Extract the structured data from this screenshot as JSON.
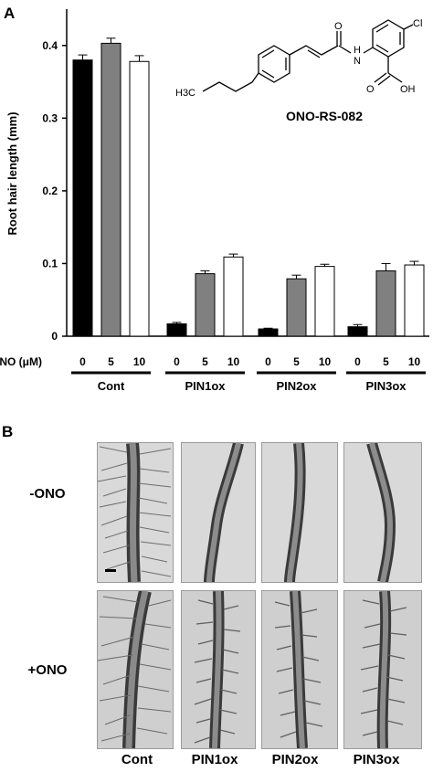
{
  "panel_a_label": "A",
  "panel_b_label": "B",
  "compound_name": "ONO-RS-082",
  "structure_labels": {
    "cl": "Cl",
    "nh": "H",
    "n": "N",
    "o": "O",
    "acid": "OH",
    "methyl": "H3C"
  },
  "chart_data": {
    "type": "bar",
    "title": "",
    "ylabel": "Root hair length (mm)",
    "xlabel": "ONO (μM)",
    "ylim": [
      0,
      0.45
    ],
    "yticks": [
      0,
      0.1,
      0.2,
      0.3,
      0.4
    ],
    "ytick_labels": [
      "0",
      "0.1",
      "0.2",
      "0.3",
      "0.4"
    ],
    "grid": false,
    "groups": [
      {
        "name": "Cont",
        "concentrations": [
          "0",
          "5",
          "10"
        ],
        "values": [
          0.38,
          0.403,
          0.378
        ],
        "errors": [
          0.007,
          0.007,
          0.008
        ]
      },
      {
        "name": "PIN1ox",
        "concentrations": [
          "0",
          "5",
          "10"
        ],
        "values": [
          0.017,
          0.086,
          0.109
        ],
        "errors": [
          0.002,
          0.004,
          0.004
        ]
      },
      {
        "name": "PIN2ox",
        "concentrations": [
          "0",
          "5",
          "10"
        ],
        "values": [
          0.01,
          0.079,
          0.096
        ],
        "errors": [
          0.001,
          0.005,
          0.003
        ]
      },
      {
        "name": "PIN3ox",
        "concentrations": [
          "0",
          "5",
          "10"
        ],
        "values": [
          0.013,
          0.09,
          0.098
        ],
        "errors": [
          0.003,
          0.01,
          0.005
        ]
      }
    ],
    "bar_colors": {
      "0": "#000000",
      "5": "#808080",
      "10": "#ffffff"
    }
  },
  "panel_b": {
    "row_labels": [
      "-ONO",
      "+ONO"
    ],
    "col_labels": [
      "Cont",
      "PIN1ox",
      "PIN2ox",
      "PIN3ox"
    ]
  }
}
